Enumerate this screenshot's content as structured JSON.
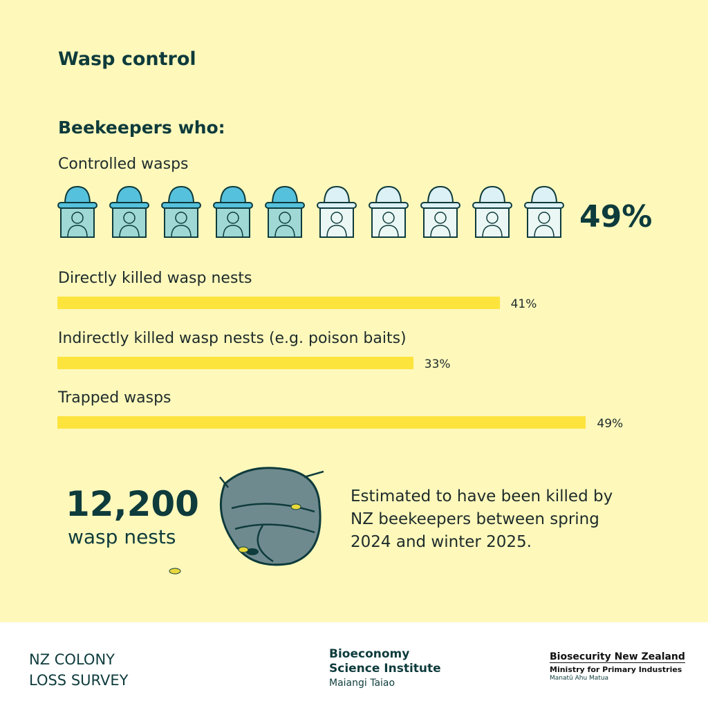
{
  "header": {
    "title": "Wasp control"
  },
  "section": {
    "subtitle": "Beekeepers who:"
  },
  "pictogram": {
    "label": "Controlled wasps",
    "value": 49,
    "value_label": "49%"
  },
  "bars": [
    {
      "label": "Directly killed wasp nests",
      "value": 41,
      "value_label": "41%"
    },
    {
      "label": "Indirectly killed wasp nests (e.g. poison baits)",
      "value": 33,
      "value_label": "33%"
    },
    {
      "label": "Trapped wasps",
      "value": 49,
      "value_label": "49%"
    }
  ],
  "highlight": {
    "number": "12,200",
    "unit": "wasp nests",
    "description": [
      "Estimated to have been killed by",
      "NZ beekeepers between spring",
      "2024 and winter 2025."
    ]
  },
  "footer": {
    "colony_survey": [
      "NZ COLONY",
      "LOSS SURVEY"
    ],
    "bioeconomy": [
      "Bioeconomy",
      "Science Institute",
      "Maiangi Taiao"
    ],
    "biosecurity": [
      "Biosecurity New Zealand",
      "Ministry for Primary Industries",
      "Manatū Ahu Matua"
    ]
  }
}
